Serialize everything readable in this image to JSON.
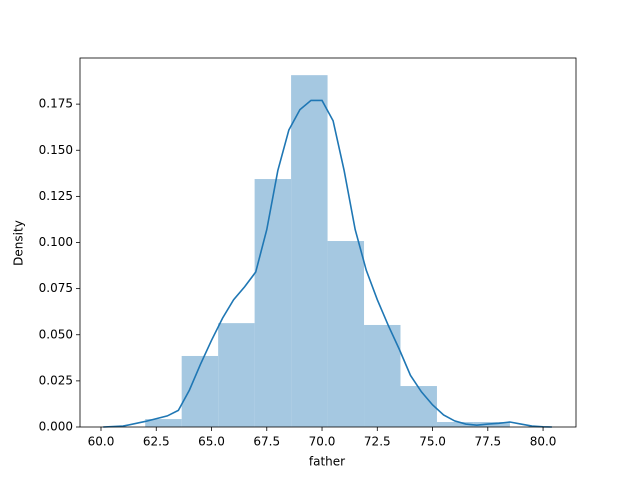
{
  "chart_data": {
    "type": "histogram",
    "xlabel": "father",
    "ylabel": "Density",
    "bins": [
      62.0,
      63.65,
      65.3,
      66.95,
      68.6,
      70.25,
      71.9,
      73.55,
      75.2,
      76.85,
      78.5
    ],
    "values": [
      0.0043,
      0.0385,
      0.0563,
      0.1344,
      0.1907,
      0.1008,
      0.0553,
      0.0222,
      0.0027,
      0.0027
    ],
    "color": "#a5c8e1",
    "kde": {
      "color": "#1f77b4",
      "x": [
        60.1,
        61,
        62,
        63,
        63.5,
        64,
        64.5,
        65,
        65.5,
        66,
        66.5,
        67,
        67.5,
        68,
        68.5,
        69,
        69.5,
        70,
        70.5,
        71,
        71.5,
        72,
        72.5,
        73,
        73.5,
        74,
        74.5,
        75,
        75.5,
        76,
        76.5,
        77,
        77.5,
        78,
        78.5,
        79,
        79.5,
        80,
        80.4
      ],
      "values": [
        0,
        0.0005,
        0.003,
        0.006,
        0.009,
        0.02,
        0.034,
        0.047,
        0.059,
        0.069,
        0.076,
        0.084,
        0.107,
        0.139,
        0.161,
        0.172,
        0.177,
        0.177,
        0.166,
        0.139,
        0.107,
        0.085,
        0.069,
        0.055,
        0.042,
        0.028,
        0.019,
        0.012,
        0.0065,
        0.0033,
        0.0016,
        0.001,
        0.0016,
        0.002,
        0.0027,
        0.0016,
        0.0005,
        0.0001,
        0
      ]
    },
    "xlim": [
      59.05,
      81.49
    ],
    "ylim": [
      0,
      0.2
    ],
    "xticks": [
      {
        "value": 60,
        "label": "60.0"
      },
      62.5,
      {
        "value": 65,
        "label": "65.0"
      },
      67.5,
      {
        "value": 70,
        "label": "70.0"
      },
      72.5,
      {
        "value": 75,
        "label": "75.0"
      },
      77.5,
      {
        "value": 80,
        "label": "80.0"
      }
    ],
    "yticks": [
      {
        "value": 0,
        "label": "0.000"
      },
      0.025,
      {
        "value": 0.05,
        "label": "0.050"
      },
      0.075,
      {
        "value": 0.1,
        "label": "0.100"
      },
      0.125,
      {
        "value": 0.15,
        "label": "0.150"
      },
      0.175
    ]
  }
}
